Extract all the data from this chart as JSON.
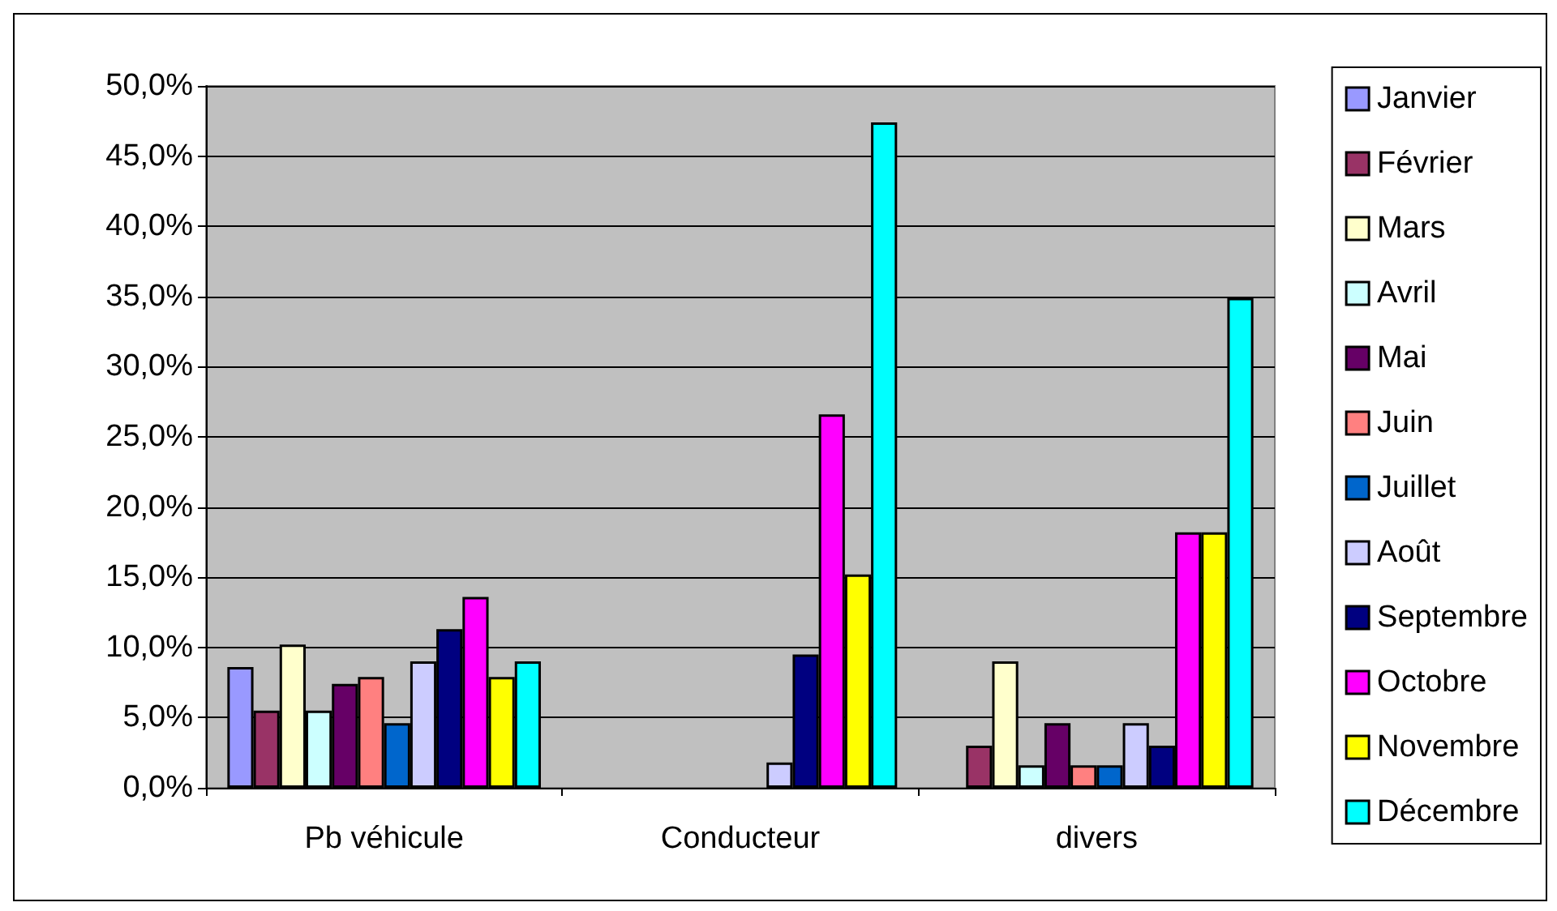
{
  "chart_data": {
    "type": "bar",
    "categories": [
      "Pb véhicule",
      "Conducteur",
      "divers"
    ],
    "series": [
      {
        "name": "Janvier",
        "color": "#9999ff",
        "values": [
          8.6,
          null,
          null
        ]
      },
      {
        "name": "Février",
        "color": "#993366",
        "values": [
          5.5,
          null,
          3.0
        ]
      },
      {
        "name": "Mars",
        "color": "#ffffcc",
        "values": [
          10.2,
          null,
          9.0
        ]
      },
      {
        "name": "Avril",
        "color": "#ccffff",
        "values": [
          5.5,
          null,
          1.6
        ]
      },
      {
        "name": "Mai",
        "color": "#660066",
        "values": [
          7.4,
          null,
          4.6
        ]
      },
      {
        "name": "Juin",
        "color": "#ff8080",
        "values": [
          7.9,
          null,
          1.6
        ]
      },
      {
        "name": "Juillet",
        "color": "#0066cc",
        "values": [
          4.6,
          null,
          1.6
        ]
      },
      {
        "name": "Août",
        "color": "#ccccff",
        "values": [
          9.0,
          1.8,
          4.6
        ]
      },
      {
        "name": "Septembre",
        "color": "#000080",
        "values": [
          11.3,
          9.5,
          3.0
        ]
      },
      {
        "name": "Octobre",
        "color": "#ff00ff",
        "values": [
          13.6,
          26.6,
          18.2
        ]
      },
      {
        "name": "Novembre",
        "color": "#ffff00",
        "values": [
          7.9,
          15.2,
          18.2
        ]
      },
      {
        "name": "Décembre",
        "color": "#00ffff",
        "values": [
          9.0,
          47.4,
          34.9
        ]
      }
    ],
    "ylim": [
      0,
      50
    ],
    "yticks": [
      {
        "value": 0,
        "label": "0,0%"
      },
      {
        "value": 5,
        "label": "5,0%"
      },
      {
        "value": 10,
        "label": "10,0%"
      },
      {
        "value": 15,
        "label": "15,0%"
      },
      {
        "value": 20,
        "label": "20,0%"
      },
      {
        "value": 25,
        "label": "25,0%"
      },
      {
        "value": 30,
        "label": "30,0%"
      },
      {
        "value": 35,
        "label": "35,0%"
      },
      {
        "value": 40,
        "label": "40,0%"
      },
      {
        "value": 45,
        "label": "45,0%"
      },
      {
        "value": 50,
        "label": "50,0%"
      }
    ],
    "grid": "y",
    "legend": "right"
  }
}
